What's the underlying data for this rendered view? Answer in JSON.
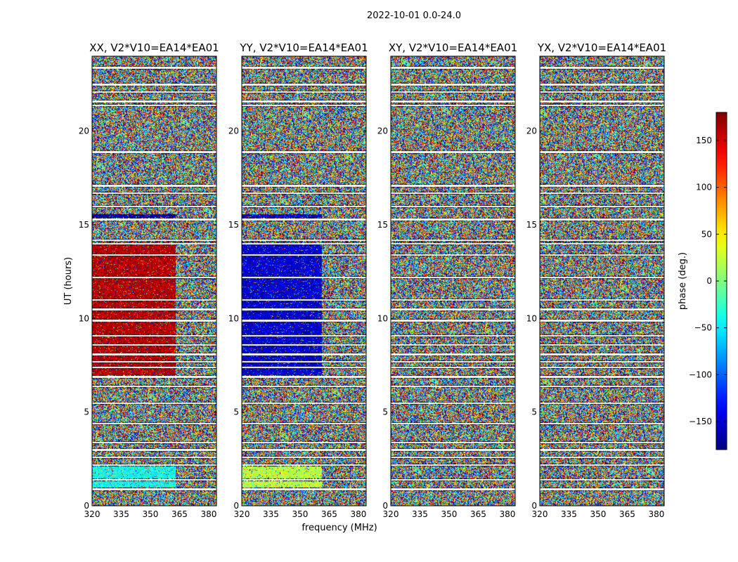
{
  "chart_data": {
    "type": "heatmap",
    "title": "2022-10-01 0.0-24.0",
    "xlabel": "frequency (MHz)",
    "ylabel": "UT (hours)",
    "xlim": [
      320,
      384
    ],
    "ylim": [
      0,
      24
    ],
    "xticks": [
      "320",
      "335",
      "350",
      "365",
      "380"
    ],
    "yticks": [
      "0",
      "5",
      "10",
      "15",
      "20"
    ],
    "panels": [
      {
        "title": "XX, V2*V10=EA14*EA01",
        "dominant_phase_deg": [
          {
            "ut_range": [
              7.0,
              14.0
            ],
            "freq_range": [
              320,
              363
            ],
            "phase": 165
          },
          {
            "ut_range": [
              15.4,
              15.6
            ],
            "freq_range": [
              320,
              363
            ],
            "phase": -170
          },
          {
            "ut_range": [
              1.0,
              2.2
            ],
            "freq_range": [
              320,
              363
            ],
            "phase": -40
          }
        ]
      },
      {
        "title": "YY, V2*V10=EA14*EA01",
        "dominant_phase_deg": [
          {
            "ut_range": [
              7.0,
              14.0
            ],
            "freq_range": [
              320,
              361
            ],
            "phase": -150
          },
          {
            "ut_range": [
              15.4,
              15.6
            ],
            "freq_range": [
              320,
              361
            ],
            "phase": -150
          },
          {
            "ut_range": [
              1.0,
              2.2
            ],
            "freq_range": [
              320,
              361
            ],
            "phase": 20
          }
        ]
      },
      {
        "title": "XY, V2*V10=EA14*EA01",
        "dominant_phase_deg": []
      },
      {
        "title": "YX, V2*V10=EA14*EA01",
        "dominant_phase_deg": []
      }
    ],
    "colorbar": {
      "label": "phase (deg.)",
      "range": [
        -180,
        180
      ],
      "ticks": [
        "150",
        "100",
        "50",
        "0",
        "−50",
        "−100",
        "−150"
      ],
      "colormap": "jet"
    },
    "flagged_ut_hours": [
      0.9,
      1.4,
      2.2,
      2.6,
      3.0,
      3.4,
      4.4,
      5.5,
      6.4,
      6.9,
      7.4,
      7.7,
      8.1,
      8.6,
      9.1,
      9.9,
      10.5,
      11.0,
      12.2,
      13.4,
      14.0,
      14.2,
      15.3,
      16.0,
      16.7,
      17.1,
      18.9,
      21.4,
      21.6,
      22.1,
      22.5,
      23.4
    ]
  }
}
